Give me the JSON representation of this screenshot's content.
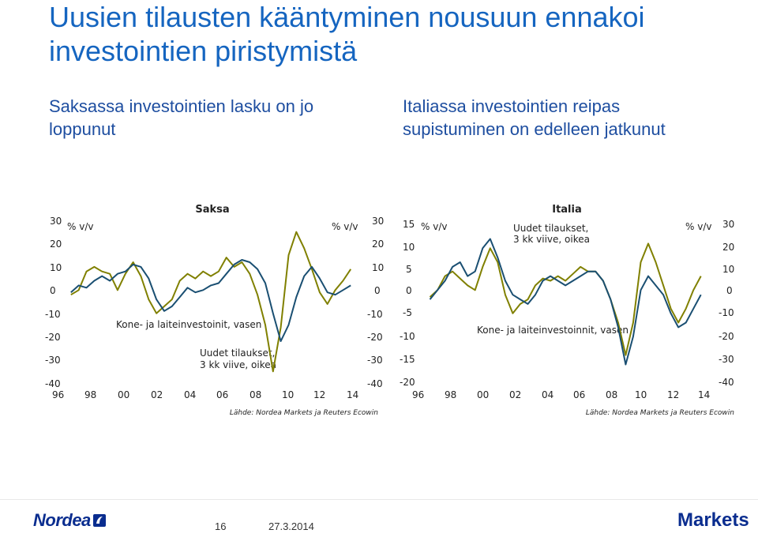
{
  "title": "Uusien tilausten kääntyminen nousuun ennakoi\ninvestointien piristymistä",
  "subtitle_left": "Saksassa investointien lasku on jo\nloppunut",
  "subtitle_right": "Italiassa investointien reipas\nsupistuminen on edelleen jatkunut",
  "colors": {
    "title": "#1565c0",
    "investment": "#1a4f72",
    "orders": "#808000"
  },
  "charts": {
    "saksa": {
      "title": "Saksa",
      "left_unit": "% v/v",
      "right_unit": "% v/v",
      "left_ticks": [
        "30",
        "20",
        "10",
        "0",
        "-10",
        "-20",
        "-30",
        "-40"
      ],
      "right_ticks": [
        "30",
        "20",
        "10",
        "0",
        "-10",
        "-20",
        "-30",
        "-40"
      ],
      "x_ticks": [
        "96",
        "98",
        "00",
        "02",
        "04",
        "06",
        "08",
        "10",
        "12",
        "14"
      ],
      "label_investment": "Kone- ja laiteinvestoinit, vasen",
      "label_orders_1": "Uudet tilaukset,",
      "label_orders_2": "3 kk viive, oikea",
      "source": "Lähde: Nordea Markets ja Reuters Ecowin"
    },
    "italia": {
      "title": "Italia",
      "left_unit": "% v/v",
      "right_unit": "% v/v",
      "left_ticks": [
        "15",
        "10",
        "5",
        "0",
        "-5",
        "-10",
        "-15",
        "-20"
      ],
      "right_ticks": [
        "30",
        "20",
        "10",
        "0",
        "-10",
        "-20",
        "-30",
        "-40"
      ],
      "x_ticks": [
        "96",
        "98",
        "00",
        "02",
        "04",
        "06",
        "08",
        "10",
        "12",
        "14"
      ],
      "label_investment": "Kone- ja laiteinvestoinnit, vasen",
      "label_orders_1": "Uudet tilaukset,",
      "label_orders_2": "3 kk viive, oikea",
      "source": "Lähde: Nordea Markets ja Reuters Ecowin"
    }
  },
  "chart_data": [
    {
      "type": "line",
      "title": "Saksa",
      "ylim_left": [
        -40,
        30
      ],
      "ylim_right": [
        -40,
        30
      ],
      "xlim": [
        1995.5,
        2014.8
      ],
      "series": [
        {
          "name": "Kone- ja laiteinvestoinit, vasen",
          "axis": "left",
          "x": [
            1996,
            1996.5,
            1997,
            1997.5,
            1998,
            1998.5,
            1999,
            1999.5,
            2000,
            2000.5,
            2001,
            2001.5,
            2002,
            2002.5,
            2003,
            2003.5,
            2004,
            2004.5,
            2005,
            2005.5,
            2006,
            2006.5,
            2007,
            2007.5,
            2008,
            2008.5,
            2009,
            2009.5,
            2010,
            2010.5,
            2011,
            2011.5,
            2012,
            2012.5,
            2013,
            2013.5,
            2014
          ],
          "y": [
            -1,
            2,
            1,
            4,
            6,
            4,
            7,
            8,
            11,
            10,
            5,
            -4,
            -9,
            -7,
            -3,
            1,
            -1,
            0,
            2,
            3,
            7,
            11,
            13,
            12,
            9,
            3,
            -10,
            -22,
            -15,
            -3,
            6,
            10,
            5,
            -1,
            -2,
            0,
            2
          ]
        },
        {
          "name": "Uudet tilaukset, 3 kk viive, oikea",
          "axis": "right",
          "x": [
            1996,
            1996.5,
            1997,
            1997.5,
            1998,
            1998.5,
            1999,
            1999.5,
            2000,
            2000.5,
            2001,
            2001.5,
            2002,
            2002.5,
            2003,
            2003.5,
            2004,
            2004.5,
            2005,
            2005.5,
            2006,
            2006.5,
            2007,
            2007.5,
            2008,
            2008.5,
            2009,
            2009.5,
            2010,
            2010.5,
            2011,
            2011.5,
            2012,
            2012.5,
            2013,
            2013.5,
            2014
          ],
          "y": [
            -2,
            0,
            8,
            10,
            8,
            7,
            0,
            7,
            12,
            6,
            -4,
            -10,
            -7,
            -4,
            4,
            7,
            5,
            8,
            6,
            8,
            14,
            10,
            12,
            7,
            -2,
            -15,
            -35,
            -16,
            15,
            25,
            18,
            9,
            -1,
            -6,
            0,
            4,
            9
          ]
        }
      ]
    },
    {
      "type": "line",
      "title": "Italia",
      "ylim_left": [
        -20,
        15
      ],
      "ylim_right": [
        -40,
        30
      ],
      "xlim": [
        1995.5,
        2014.8
      ],
      "series": [
        {
          "name": "Kone- ja laiteinvestoinnit, vasen",
          "axis": "left",
          "x": [
            1996,
            1996.5,
            1997,
            1997.5,
            1998,
            1998.5,
            1999,
            1999.5,
            2000,
            2000.5,
            2001,
            2001.5,
            2002,
            2002.5,
            2003,
            2003.5,
            2004,
            2004.5,
            2005,
            2005.5,
            2006,
            2006.5,
            2007,
            2007.5,
            2008,
            2008.5,
            2009,
            2009.5,
            2010,
            2010.5,
            2011,
            2011.5,
            2012,
            2012.5,
            2013,
            2013.5,
            2014
          ],
          "y": [
            -2,
            0,
            2,
            5,
            6,
            3,
            4,
            9,
            11,
            7,
            2,
            -1,
            -2,
            -3,
            -1,
            2,
            3,
            2,
            1,
            2,
            3,
            4,
            4,
            2,
            -2,
            -8,
            -16,
            -10,
            0,
            3,
            1,
            -1,
            -5,
            -8,
            -7,
            -4,
            -1
          ]
        },
        {
          "name": "Uudet tilaukset, 3 kk viive, oikea",
          "axis": "right",
          "x": [
            1996,
            1996.5,
            1997,
            1997.5,
            1998,
            1998.5,
            1999,
            1999.5,
            2000,
            2000.5,
            2001,
            2001.5,
            2002,
            2002.5,
            2003,
            2003.5,
            2004,
            2004.5,
            2005,
            2005.5,
            2006,
            2006.5,
            2007,
            2007.5,
            2008,
            2008.5,
            2009,
            2009.5,
            2010,
            2010.5,
            2011,
            2011.5,
            2012,
            2012.5,
            2013,
            2013.5,
            2014
          ],
          "y": [
            -3,
            0,
            6,
            8,
            5,
            2,
            0,
            10,
            18,
            12,
            -2,
            -10,
            -6,
            -4,
            2,
            5,
            4,
            6,
            4,
            7,
            10,
            8,
            8,
            4,
            -4,
            -14,
            -28,
            -14,
            12,
            20,
            12,
            2,
            -8,
            -14,
            -8,
            0,
            6
          ]
        }
      ]
    }
  ],
  "footer": {
    "logo_text": "Nordea",
    "page_number": "16",
    "date": "27.3.2014",
    "markets_logo": "Markets"
  }
}
